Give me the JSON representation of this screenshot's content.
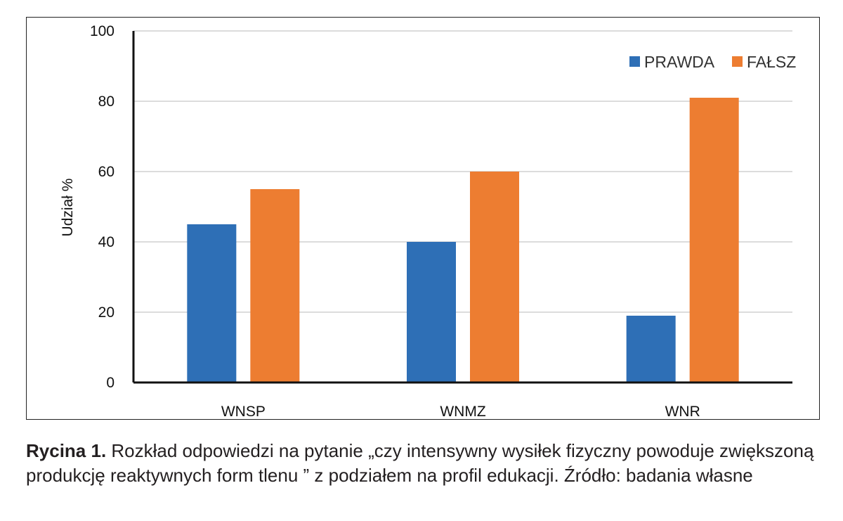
{
  "chart_data": {
    "type": "bar",
    "categories": [
      "WNSP",
      "WNMZ",
      "WNR"
    ],
    "series": [
      {
        "name": "PRAWDA",
        "color": "#2e6fb6",
        "values": [
          45,
          40,
          19
        ]
      },
      {
        "name": "FAŁSZ",
        "color": "#ed7d31",
        "values": [
          55,
          60,
          81
        ]
      }
    ],
    "ylabel": "Udział %",
    "xlabel": "",
    "ylim": [
      0,
      100
    ],
    "yticks": [
      0,
      20,
      40,
      60,
      80,
      100
    ],
    "grid": true,
    "legend_position": "top-right"
  },
  "caption": {
    "label": "Rycina 1.",
    "text": " Rozkład odpowiedzi na pytanie „czy intensywny wysiłek fizyczny powoduje zwiększoną produkcję reaktywnych form tlenu ” z podziałem na profil edukacji. Źródło: badania własne"
  }
}
